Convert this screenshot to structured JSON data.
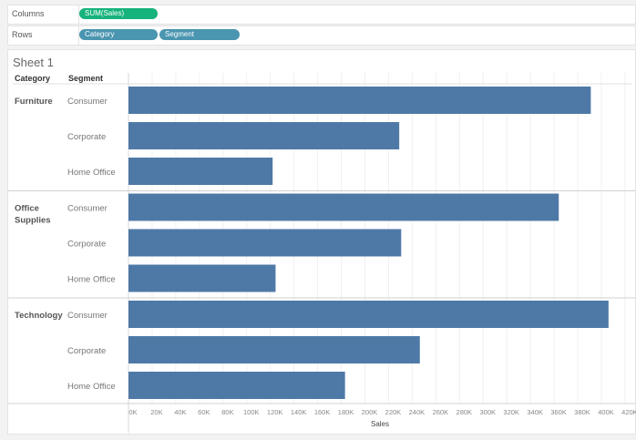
{
  "shelves": {
    "columns_label": "Columns",
    "rows_label": "Rows",
    "columns_pill": "SUM(Sales)",
    "rows_pills": [
      "Category",
      "Segment"
    ]
  },
  "sheet_title": "Sheet 1",
  "colors": {
    "bar": "#4e79a7",
    "measure_pill": "#16b37c",
    "dim_pill": "#4a95b0"
  },
  "chart_data": {
    "type": "bar",
    "orientation": "horizontal",
    "row_headers": [
      "Category",
      "Segment"
    ],
    "groups": [
      {
        "category": "Furniture",
        "segments": [
          "Consumer",
          "Corporate",
          "Home Office"
        ],
        "values": [
          391049,
          229020,
          121930
        ]
      },
      {
        "category": "Office Supplies",
        "segments": [
          "Consumer",
          "Corporate",
          "Home Office"
        ],
        "values": [
          363952,
          230676,
          124418
        ]
      },
      {
        "category": "Technology",
        "segments": [
          "Consumer",
          "Corporate",
          "Home Office"
        ],
        "values": [
          406040,
          246450,
          183157
        ]
      }
    ],
    "xlabel": "Sales",
    "xlim": [
      0,
      420000
    ],
    "ticks": [
      "0K",
      "20K",
      "40K",
      "60K",
      "80K",
      "100K",
      "120K",
      "140K",
      "160K",
      "180K",
      "200K",
      "220K",
      "240K",
      "260K",
      "280K",
      "300K",
      "320K",
      "340K",
      "360K",
      "380K",
      "400K",
      "420K"
    ],
    "grid": true
  }
}
